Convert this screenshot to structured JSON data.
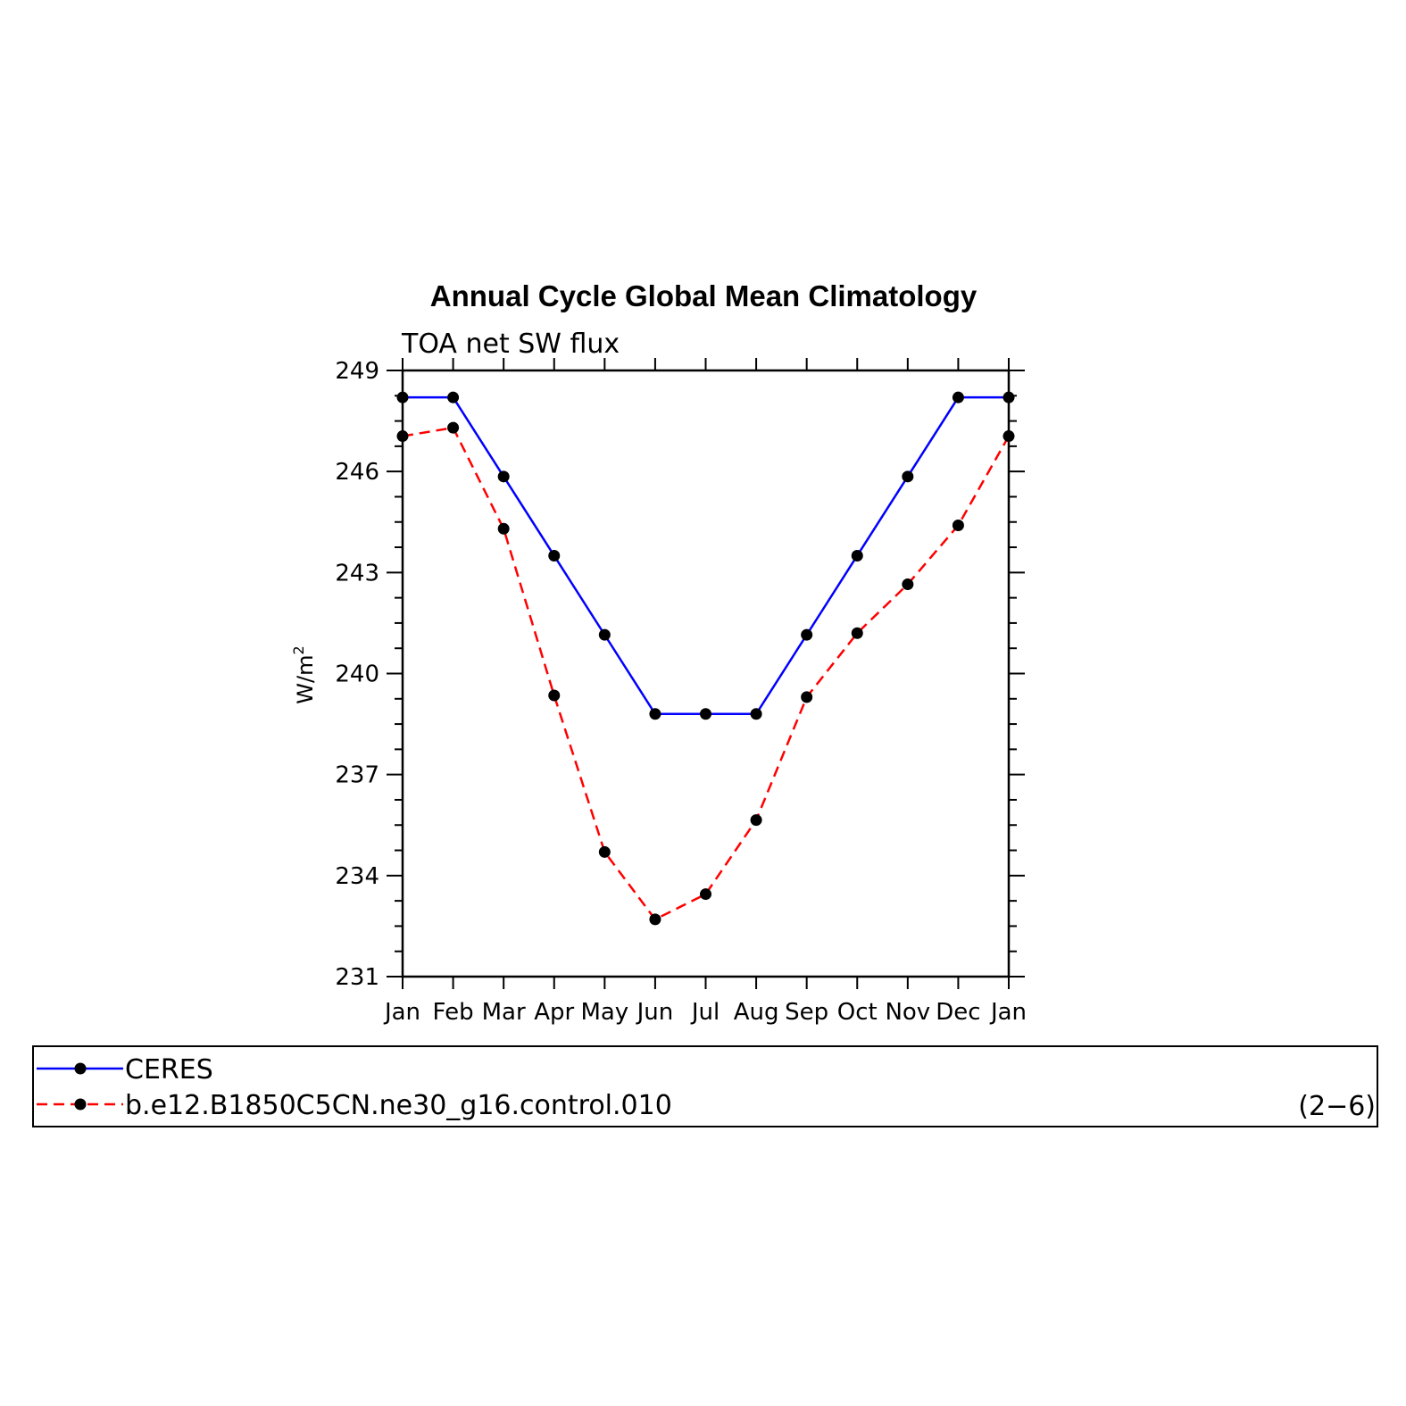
{
  "chart_data": {
    "type": "line",
    "title": "Annual Cycle Global Mean Climatology",
    "subtitle": "TOA  net  SW  flux",
    "ylabel": "W/m",
    "ylabel_superscript": "2",
    "categories": [
      "Jan",
      "Feb",
      "Mar",
      "Apr",
      "May",
      "Jun",
      "Jul",
      "Aug",
      "Sep",
      "Oct",
      "Nov",
      "Dec",
      "Jan"
    ],
    "yticks": [
      231,
      234,
      237,
      240,
      243,
      246,
      249
    ],
    "ylim": [
      231,
      249
    ],
    "series": [
      {
        "name": "CERES",
        "color": "#0000ff",
        "style": "solid",
        "marker": "filled-circle",
        "values": [
          248.2,
          248.2,
          245.85,
          243.5,
          241.15,
          238.8,
          238.8,
          238.8,
          241.15,
          243.5,
          245.85,
          248.2,
          248.2
        ]
      },
      {
        "name": "b.e12.B1850C5CN.ne30_g16.control.010",
        "color": "#ff0000",
        "style": "dashed",
        "marker": "filled-circle",
        "values": [
          247.05,
          247.3,
          244.3,
          239.35,
          234.7,
          232.7,
          233.45,
          235.65,
          239.3,
          241.2,
          242.65,
          244.4,
          247.05
        ]
      }
    ],
    "grid": false,
    "legend_position": "bottom",
    "annotation": "(2−6)"
  }
}
